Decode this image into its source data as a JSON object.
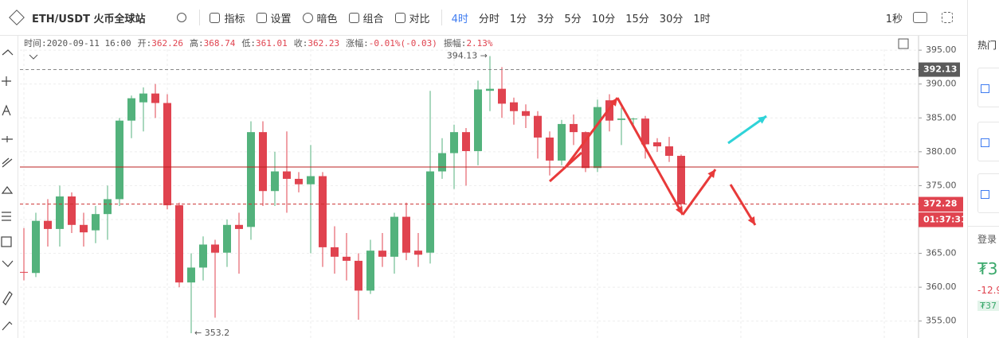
{
  "toolbar": {
    "symbol": "ETH/USDT 火币全球站",
    "buttons": [
      "指标",
      "设置",
      "暗色",
      "组合",
      "对比"
    ],
    "active_period": "4时",
    "periods": [
      "分时",
      "1分",
      "3分",
      "5分",
      "10分",
      "15分",
      "30分",
      "1时"
    ],
    "speed": "1秒"
  },
  "info_bar": [
    {
      "label": "时间:",
      "value": "2020-09-11 16:00"
    },
    {
      "label": "开:",
      "value": "362.26"
    },
    {
      "label": "高:",
      "value": "368.74"
    },
    {
      "label": "低:",
      "value": "361.01"
    },
    {
      "label": "收:",
      "value": "362.23"
    },
    {
      "label": "涨幅:",
      "value": "-0.01%(-0.03)"
    },
    {
      "label": "振幅:",
      "value": "2.13%"
    }
  ],
  "right_panel": {
    "title": "热门",
    "login": "登录",
    "price": "₮3",
    "change": "-12.9",
    "badge": "₮37"
  },
  "chart_data": {
    "type": "candlestick",
    "up_color": "#53b27c",
    "down_color": "#e0434f",
    "series": [
      {
        "open": [
          362.26,
          362.1,
          369.8,
          368.6,
          373.4,
          369.2,
          368.4,
          370.8,
          373,
          384.6,
          387.3,
          388.6,
          387.2,
          372.1,
          360.7,
          362.9,
          366.3,
          365.1,
          369.2,
          368.9,
          382.9,
          374.2,
          377.1,
          376,
          375.2,
          376.4,
          365.9,
          364.5,
          363.9,
          359.5,
          365.4,
          364.5,
          370.4,
          365.4,
          365.1,
          377.1,
          379.8,
          382.9,
          380.1,
          389.0,
          389.3,
          387.3,
          386,
          385.3,
          382.1,
          378.7,
          384.1,
          382.9,
          377.6,
          387.6,
          384.7,
          384.8,
          384.9,
          381.4,
          380.8,
          379.4
        ],
        "high": [
          368.74,
          371,
          373,
          375,
          374,
          371,
          372,
          375,
          385,
          388.3,
          389.5,
          390,
          388.5,
          372.5,
          365,
          367.5,
          367,
          370,
          371,
          384.5,
          384.5,
          380,
          383,
          377,
          381,
          377,
          369,
          368,
          365,
          367,
          368,
          371,
          372.5,
          368,
          389,
          382,
          384,
          383.5,
          390.5,
          394.13,
          392.5,
          388,
          387,
          386,
          383,
          384.7,
          385.5,
          383,
          387.7,
          388.5,
          386.5,
          385,
          385.3,
          382,
          382.2,
          379.6
        ],
        "low": [
          361.01,
          361.5,
          366,
          366,
          368,
          366,
          366.5,
          367,
          372,
          382,
          383,
          385,
          371.5,
          360,
          353.2,
          361,
          355.5,
          363,
          362,
          367,
          372,
          372,
          371,
          374,
          365,
          363,
          362,
          361,
          355.2,
          359,
          363,
          362,
          364,
          363,
          363.5,
          376,
          374.5,
          375,
          378,
          386,
          385,
          384,
          383.5,
          379,
          376.5,
          378,
          381,
          377,
          377,
          383,
          381,
          384,
          379,
          380,
          378.5,
          370.9
        ],
        "close": [
          362.23,
          369.8,
          368.6,
          373.4,
          369.2,
          368.1,
          370.8,
          373,
          384.6,
          387.9,
          388.6,
          387.2,
          372.1,
          360.7,
          362.9,
          366.3,
          365.1,
          369.2,
          368.6,
          382.9,
          374.2,
          377.1,
          376,
          375.2,
          376.4,
          365.9,
          364.5,
          363.9,
          359.5,
          365.4,
          364.5,
          370.4,
          365.1,
          364.8,
          377.1,
          379.8,
          382.9,
          380.1,
          389.2,
          389.3,
          387.1,
          386,
          385.3,
          382.1,
          378.7,
          384.1,
          382.9,
          377.6,
          386.6,
          384.6,
          384.9,
          384.9,
          381.1,
          380.8,
          379.4,
          372.28
        ]
      }
    ],
    "ylim": [
      352.5,
      398.3
    ],
    "yticks": [
      {
        "value": 355,
        "label": "355.00"
      },
      {
        "value": 360,
        "label": "360.00"
      },
      {
        "value": 365,
        "label": "365.00"
      },
      {
        "value": 370,
        "label": "370.00"
      },
      {
        "value": 375,
        "label": "375.00"
      },
      {
        "value": 380,
        "label": "380.00"
      },
      {
        "value": 385,
        "label": "385.00"
      },
      {
        "value": 390,
        "label": "390.00"
      },
      {
        "value": 395,
        "label": "395.00"
      }
    ],
    "grid": true,
    "high_marker": {
      "value": 394.13,
      "label": "394.13 →"
    },
    "low_marker": {
      "value": 353.2,
      "label": "← 353.2"
    },
    "reference_price": 392.13,
    "last_price": 372.28,
    "countdown": "01:37:31"
  }
}
